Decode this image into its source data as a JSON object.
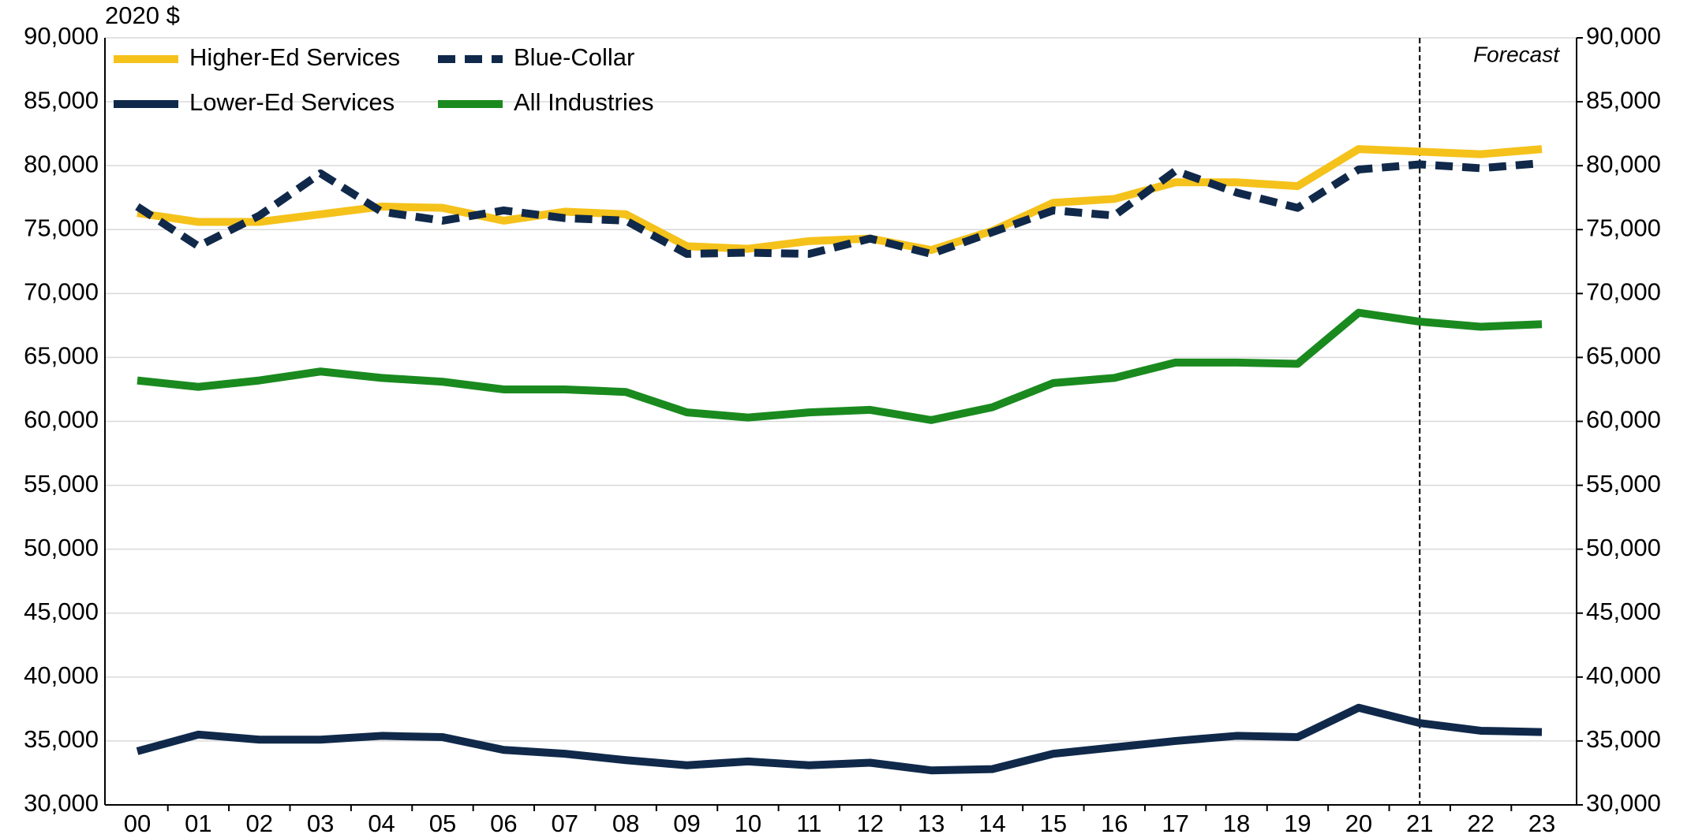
{
  "chart_data": {
    "type": "line",
    "y_label": "2020 $",
    "categories": [
      "00",
      "01",
      "02",
      "03",
      "04",
      "05",
      "06",
      "07",
      "08",
      "09",
      "10",
      "11",
      "12",
      "13",
      "14",
      "15",
      "16",
      "17",
      "18",
      "19",
      "20",
      "21",
      "22",
      "23"
    ],
    "series": [
      {
        "name": "Higher-Ed Services",
        "color": "#f5c21b",
        "dash": false,
        "values": [
          76300,
          75600,
          75600,
          76200,
          76800,
          76700,
          75700,
          76400,
          76200,
          73700,
          73500,
          74100,
          74300,
          73400,
          74900,
          77100,
          77400,
          78700,
          78700,
          78400,
          81300,
          81100,
          80900,
          81300
        ]
      },
      {
        "name": "Blue-Collar",
        "color": "#10294a",
        "dash": true,
        "values": [
          76800,
          73700,
          76100,
          79400,
          76400,
          75700,
          76500,
          75900,
          75700,
          73100,
          73200,
          73100,
          74300,
          73100,
          74800,
          76500,
          76100,
          79600,
          77900,
          76700,
          79700,
          80100,
          79800,
          80200
        ]
      },
      {
        "name": "Lower-Ed Services",
        "color": "#10294a",
        "dash": false,
        "values": [
          34200,
          35500,
          35100,
          35100,
          35400,
          35300,
          34300,
          34000,
          33500,
          33100,
          33400,
          33100,
          33300,
          32700,
          32800,
          34000,
          34500,
          35000,
          35400,
          35300,
          37600,
          36400,
          35800,
          35700
        ]
      },
      {
        "name": "All Industries",
        "color": "#1a8a1f",
        "dash": false,
        "values": [
          63200,
          62700,
          63200,
          63900,
          63400,
          63100,
          62500,
          62500,
          62300,
          60700,
          60300,
          60700,
          60900,
          60100,
          61100,
          63000,
          63400,
          64600,
          64600,
          64500,
          68500,
          67800,
          67400,
          67600
        ]
      }
    ],
    "ylim": [
      30000,
      90000
    ],
    "yticks": [
      {
        "value": 30000,
        "label": "30,000"
      },
      {
        "value": 35000,
        "label": "35,000"
      },
      {
        "value": 40000,
        "label": "40,000"
      },
      {
        "value": 45000,
        "label": "45,000"
      },
      {
        "value": 50000,
        "label": "50,000"
      },
      {
        "value": 55000,
        "label": "55,000"
      },
      {
        "value": 60000,
        "label": "60,000"
      },
      {
        "value": 65000,
        "label": "65,000"
      },
      {
        "value": 70000,
        "label": "70,000"
      },
      {
        "value": 75000,
        "label": "75,000"
      },
      {
        "value": 80000,
        "label": "80,000"
      },
      {
        "value": 85000,
        "label": "85,000"
      },
      {
        "value": 90000,
        "label": "90,000"
      }
    ],
    "y2lim": [
      30000,
      90000
    ],
    "y2ticks": [
      {
        "value": 30000,
        "label": "30,000"
      },
      {
        "value": 35000,
        "label": "35,000"
      },
      {
        "value": 40000,
        "label": "40,000"
      },
      {
        "value": 45000,
        "label": "45,000"
      },
      {
        "value": 50000,
        "label": "50,000"
      },
      {
        "value": 55000,
        "label": "55,000"
      },
      {
        "value": 60000,
        "label": "60,000"
      },
      {
        "value": 65000,
        "label": "65,000"
      },
      {
        "value": 70000,
        "label": "70,000"
      },
      {
        "value": 75000,
        "label": "75,000"
      },
      {
        "value": 80000,
        "label": "80,000"
      },
      {
        "value": 85000,
        "label": "85,000"
      },
      {
        "value": 90000,
        "label": "90,000"
      }
    ],
    "grid": true,
    "legend": "upper-left",
    "annotations": [
      {
        "text": "Forecast",
        "x": "21"
      }
    ]
  }
}
